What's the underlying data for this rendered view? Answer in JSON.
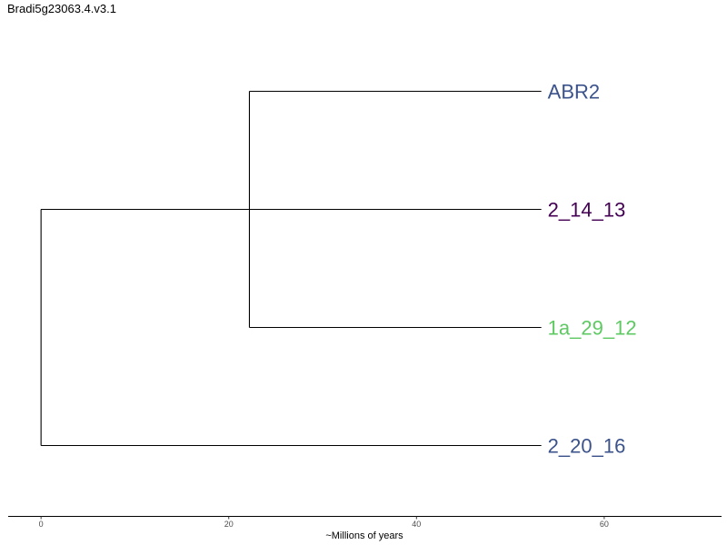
{
  "title": "Bradi5g23063.4.v3.1",
  "axis": {
    "label": "~Millions of years",
    "ticks": [
      0,
      20,
      40,
      60
    ],
    "range": [
      -3.5,
      72.5
    ]
  },
  "tree": {
    "root_age": 0,
    "nodes": [
      {
        "id": "root",
        "parent": null,
        "age": 0
      },
      {
        "id": "inner",
        "parent": "root",
        "age": 22.2
      }
    ],
    "tips": [
      {
        "name": "ABR2",
        "parent": "inner",
        "age": 53.3,
        "color": "#3b528b"
      },
      {
        "name": "2_14_13",
        "parent": "root",
        "age": 53.3,
        "color": "#440154"
      },
      {
        "name": "1a_29_12",
        "parent": "inner",
        "age": 53.3,
        "color": "#5ec962"
      },
      {
        "name": "2_20_16",
        "parent": "root",
        "age": 53.3,
        "color": "#3b528b"
      }
    ]
  }
}
